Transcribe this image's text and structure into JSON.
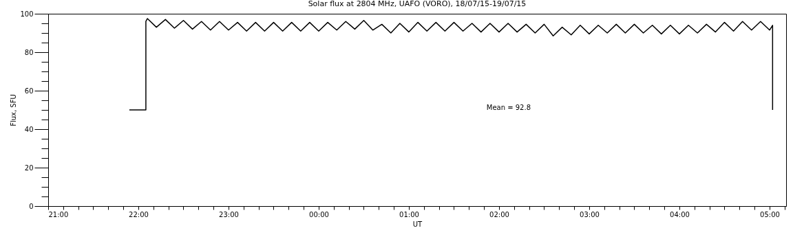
{
  "chart_data": {
    "type": "line",
    "title": "Solar flux at 2804 MHz, UAFO (VORO),  18/07/15-19/07/15",
    "xlabel": "UT",
    "ylabel": "Flux, SFU",
    "annotations": [
      "Mean =    92.8"
    ],
    "x": [
      "--07-18T21:54",
      "--07-18T22:05",
      "--07-18T22:05",
      "--07-18T22:06",
      "--07-18T22:12",
      "--07-18T22:18",
      "--07-18T22:24",
      "--07-18T22:30",
      "--07-18T22:36",
      "--07-18T22:42",
      "--07-18T22:48",
      "--07-18T22:54",
      "--07-18T23:00",
      "--07-18T23:06",
      "--07-18T23:12",
      "--07-18T23:18",
      "--07-18T23:24",
      "--07-18T23:30",
      "--07-18T23:36",
      "--07-18T23:42",
      "--07-18T23:48",
      "--07-18T23:54",
      "--07-19T00:00",
      "--07-19T00:06",
      "--07-19T00:12",
      "--07-19T00:18",
      "--07-19T00:24",
      "--07-19T00:30",
      "--07-19T00:36",
      "--07-19T00:42",
      "--07-19T00:48",
      "--07-19T00:54",
      "--07-19T01:00",
      "--07-19T01:06",
      "--07-19T01:12",
      "--07-19T01:18",
      "--07-19T01:24",
      "--07-19T01:30",
      "--07-19T01:36",
      "--07-19T01:42",
      "--07-19T01:48",
      "--07-19T01:54",
      "--07-19T02:00",
      "--07-19T02:06",
      "--07-19T02:12",
      "--07-19T02:18",
      "--07-19T02:24",
      "--07-19T02:30",
      "--07-19T02:36",
      "--07-19T02:42",
      "--07-19T02:48",
      "--07-19T02:54",
      "--07-19T03:00",
      "--07-19T03:06",
      "--07-19T03:12",
      "--07-19T03:18",
      "--07-19T03:24",
      "--07-19T03:30",
      "--07-19T03:36",
      "--07-19T03:42",
      "--07-19T03:48",
      "--07-19T03:54",
      "--07-19T04:00",
      "--07-19T04:06",
      "--07-19T04:12",
      "--07-19T04:18",
      "--07-19T04:24",
      "--07-19T04:30",
      "--07-19T04:36",
      "--07-19T04:42",
      "--07-19T04:48",
      "--07-19T04:54",
      "--07-19T05:00",
      "--07-19T05:02",
      "--07-19T05:02"
    ],
    "series": [
      {
        "color": "#000000",
        "values": [
          50,
          50,
          96,
          97.5,
          93,
          97,
          92.5,
          96.5,
          92,
          96,
          91.5,
          96,
          91.5,
          95.5,
          91,
          95.5,
          91,
          95.5,
          91,
          95.5,
          91,
          95.5,
          91,
          95.5,
          91.5,
          96,
          92,
          96.5,
          91.5,
          94.5,
          90,
          95,
          90.5,
          95.5,
          91,
          95.5,
          91,
          95.5,
          91,
          95,
          90.5,
          95,
          90.5,
          95,
          90.5,
          94.5,
          90,
          94.5,
          88.5,
          93,
          89,
          94,
          89.5,
          94,
          90,
          94.5,
          90,
          94.5,
          90,
          94,
          89.5,
          94,
          89.5,
          94,
          90,
          94.5,
          90.5,
          95.5,
          91,
          96,
          91.5,
          96,
          91.5,
          94,
          50
        ]
      }
    ],
    "xlim": [
      "--07-18T21:00",
      "--07-19T05:11"
    ],
    "xticks": [
      {
        "value": "--07-18T21:00",
        "label": "21:00"
      },
      {
        "value": "--07-18T21:10",
        "label": null
      },
      {
        "value": "--07-18T21:20",
        "label": null
      },
      {
        "value": "--07-18T21:30",
        "label": null
      },
      {
        "value": "--07-18T21:40",
        "label": null
      },
      {
        "value": "--07-18T21:50",
        "label": null
      },
      {
        "value": "--07-18T22:00",
        "label": "22:00"
      },
      {
        "value": "--07-18T22:10",
        "label": null
      },
      {
        "value": "--07-18T22:20",
        "label": null
      },
      {
        "value": "--07-18T22:30",
        "label": null
      },
      {
        "value": "--07-18T22:40",
        "label": null
      },
      {
        "value": "--07-18T22:50",
        "label": null
      },
      {
        "value": "--07-18T23:00",
        "label": "23:00"
      },
      {
        "value": "--07-18T23:10",
        "label": null
      },
      {
        "value": "--07-18T23:20",
        "label": null
      },
      {
        "value": "--07-18T23:30",
        "label": null
      },
      {
        "value": "--07-18T23:40",
        "label": null
      },
      {
        "value": "--07-18T23:50",
        "label": null
      },
      {
        "value": "--07-19T00:00",
        "label": "00:00"
      },
      {
        "value": "--07-19T00:10",
        "label": null
      },
      {
        "value": "--07-19T00:20",
        "label": null
      },
      {
        "value": "--07-19T00:30",
        "label": null
      },
      {
        "value": "--07-19T00:40",
        "label": null
      },
      {
        "value": "--07-19T00:50",
        "label": null
      },
      {
        "value": "--07-19T01:00",
        "label": "01:00"
      },
      {
        "value": "--07-19T01:10",
        "label": null
      },
      {
        "value": "--07-19T01:20",
        "label": null
      },
      {
        "value": "--07-19T01:30",
        "label": null
      },
      {
        "value": "--07-19T01:40",
        "label": null
      },
      {
        "value": "--07-19T01:50",
        "label": null
      },
      {
        "value": "--07-19T02:00",
        "label": "02:00"
      },
      {
        "value": "--07-19T02:10",
        "label": null
      },
      {
        "value": "--07-19T02:20",
        "label": null
      },
      {
        "value": "--07-19T02:30",
        "label": null
      },
      {
        "value": "--07-19T02:40",
        "label": null
      },
      {
        "value": "--07-19T02:50",
        "label": null
      },
      {
        "value": "--07-19T03:00",
        "label": "03:00"
      },
      {
        "value": "--07-19T03:10",
        "label": null
      },
      {
        "value": "--07-19T03:20",
        "label": null
      },
      {
        "value": "--07-19T03:30",
        "label": null
      },
      {
        "value": "--07-19T03:40",
        "label": null
      },
      {
        "value": "--07-19T03:50",
        "label": null
      },
      {
        "value": "--07-19T04:00",
        "label": "04:00"
      },
      {
        "value": "--07-19T04:10",
        "label": null
      },
      {
        "value": "--07-19T04:20",
        "label": null
      },
      {
        "value": "--07-19T04:30",
        "label": null
      },
      {
        "value": "--07-19T04:40",
        "label": null
      },
      {
        "value": "--07-19T04:50",
        "label": null
      },
      {
        "value": "--07-19T05:00",
        "label": "05:00"
      },
      {
        "value": "--07-19T05:10",
        "label": null
      }
    ],
    "ylim": [
      0,
      100
    ],
    "yticks": [
      0,
      {
        "value": 5,
        "label": null
      },
      {
        "value": 10,
        "label": null
      },
      {
        "value": 15,
        "label": null
      },
      20,
      {
        "value": 25,
        "label": null
      },
      {
        "value": 30,
        "label": null
      },
      {
        "value": 35,
        "label": null
      },
      40,
      {
        "value": 45,
        "label": null
      },
      {
        "value": 50,
        "label": null
      },
      {
        "value": 55,
        "label": null
      },
      60,
      {
        "value": 65,
        "label": null
      },
      {
        "value": 70,
        "label": null
      },
      {
        "value": 75,
        "label": null
      },
      80,
      {
        "value": 85,
        "label": null
      },
      {
        "value": 90,
        "label": null
      },
      {
        "value": 95,
        "label": null
      },
      100
    ],
    "grid": false
  }
}
